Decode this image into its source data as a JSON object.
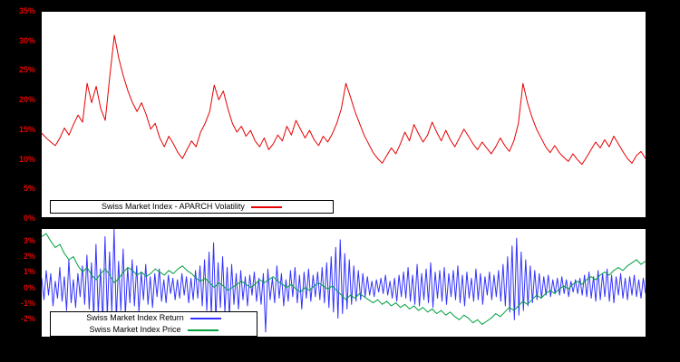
{
  "colors": {
    "page_bg": "#000000",
    "plot_bg": "#ffffff",
    "frame": "#000000",
    "volatility_line": "#e60000",
    "return_line": "#3333ff",
    "price_line": "#00a040",
    "tick_label": "#e60000"
  },
  "chart_data": [
    {
      "type": "line",
      "title": "Swiss Market Index - APARCH Volatility",
      "xlabel": "",
      "ylabel": "",
      "ylim": [
        0,
        35
      ],
      "yticks": [
        0,
        5,
        10,
        15,
        20,
        25,
        30,
        35
      ],
      "ytick_suffix": "%",
      "tick_color": "#e60000",
      "grid": false,
      "legend_position": "bottom-left-inside",
      "series": [
        {
          "name": "Swiss Market Index - APARCH Volatility",
          "color": "#e60000",
          "values": [
            14.3,
            13.5,
            12.8,
            12.2,
            13.5,
            15.2,
            14.0,
            15.8,
            17.4,
            16.2,
            22.8,
            19.5,
            22.3,
            18.5,
            16.5,
            24.0,
            31.0,
            27.0,
            24.0,
            21.5,
            19.5,
            18.0,
            19.5,
            17.5,
            15.0,
            16.0,
            13.5,
            12.0,
            13.8,
            12.5,
            11.0,
            10.0,
            11.5,
            13.0,
            12.0,
            14.5,
            16.0,
            18.0,
            22.5,
            20.0,
            21.5,
            18.5,
            16.0,
            14.5,
            15.5,
            13.8,
            14.8,
            13.0,
            12.0,
            13.5,
            11.5,
            12.5,
            14.0,
            13.0,
            15.5,
            14.0,
            16.5,
            15.0,
            13.5,
            14.8,
            13.2,
            12.2,
            13.8,
            12.8,
            14.2,
            16.0,
            18.5,
            22.8,
            20.5,
            18.0,
            16.0,
            14.0,
            12.5,
            11.0,
            10.0,
            9.2,
            10.5,
            11.8,
            10.8,
            12.5,
            14.5,
            13.0,
            15.8,
            14.2,
            12.8,
            14.0,
            16.2,
            14.5,
            13.0,
            14.8,
            13.2,
            12.0,
            13.5,
            15.0,
            13.8,
            12.5,
            11.5,
            12.8,
            11.8,
            10.8,
            12.0,
            13.5,
            12.2,
            11.2,
            13.0,
            16.0,
            22.8,
            19.5,
            17.0,
            15.0,
            13.5,
            12.0,
            11.0,
            12.2,
            11.0,
            10.2,
            9.5,
            10.8,
            9.8,
            9.0,
            10.2,
            11.5,
            12.8,
            11.8,
            13.2,
            12.0,
            13.8,
            12.5,
            11.2,
            10.0,
            9.2,
            10.5,
            11.2,
            10.0
          ]
        }
      ]
    },
    {
      "type": "line",
      "title": "",
      "xlabel": "",
      "ylabel": "",
      "ylim": [
        -3.2,
        3.8
      ],
      "yticks": [
        -2,
        -1,
        0,
        1,
        2,
        3
      ],
      "ytick_suffix": "%",
      "tick_color": "#e60000",
      "grid": false,
      "legend_position": "bottom-left-inside",
      "series": [
        {
          "name": "Swiss Market Index Return",
          "color": "#3333ff",
          "values": [
            0.6,
            -0.8,
            1.1,
            -0.5,
            0.9,
            -1.2,
            0.4,
            -0.7,
            1.3,
            -0.9,
            0.7,
            -1.5,
            1.8,
            -1.0,
            0.5,
            -1.3,
            0.9,
            -0.6,
            1.4,
            -1.1,
            2.1,
            -1.4,
            1.6,
            -2.0,
            2.8,
            -1.7,
            1.2,
            -2.2,
            3.3,
            -1.9,
            2.3,
            -1.6,
            3.8,
            -2.1,
            1.7,
            -1.5,
            2.5,
            -1.8,
            1.3,
            -1.0,
            1.8,
            -1.2,
            1.4,
            -1.6,
            1.0,
            -0.8,
            1.5,
            -1.1,
            0.7,
            -1.3,
            0.9,
            -0.6,
            1.2,
            -0.9,
            0.5,
            -1.0,
            0.8,
            -0.4,
            0.6,
            -0.8,
            0.5,
            -0.7,
            0.9,
            -0.5,
            0.7,
            -1.0,
            0.6,
            -0.8,
            1.1,
            -0.7,
            1.4,
            -1.2,
            1.8,
            -1.5,
            2.3,
            -1.8,
            2.9,
            -2.1,
            1.6,
            -1.3,
            2.0,
            -1.6,
            1.3,
            -1.9,
            1.5,
            -1.1,
            0.9,
            -1.4,
            1.1,
            -0.8,
            0.7,
            -1.2,
            0.8,
            -0.5,
            1.0,
            -0.9,
            0.6,
            -1.1,
            0.9,
            -2.9,
            1.2,
            -0.8,
            0.6,
            -1.0,
            1.4,
            -0.7,
            0.9,
            -1.2,
            0.5,
            -0.9,
            1.1,
            -0.6,
            1.3,
            -1.0,
            0.8,
            -1.4,
            1.0,
            -0.7,
            1.2,
            -0.9,
            0.8,
            -0.6,
            1.0,
            -0.8,
            1.3,
            -1.0,
            1.6,
            -1.3,
            2.0,
            -1.6,
            2.6,
            -2.0,
            3.1,
            -1.7,
            2.2,
            -1.4,
            1.8,
            -1.1,
            1.4,
            -0.9,
            1.1,
            -0.8,
            0.9,
            -0.6,
            0.7,
            -0.5,
            0.4,
            -0.6,
            0.5,
            -0.3,
            0.6,
            -0.4,
            0.8,
            -0.5,
            0.4,
            -0.7,
            0.6,
            -0.9,
            0.8,
            -0.6,
            1.0,
            -0.7,
            1.3,
            -0.9,
            0.8,
            -1.1,
            1.5,
            -1.2,
            0.9,
            -0.8,
            1.2,
            -1.0,
            1.6,
            -1.3,
            1.0,
            -0.7,
            1.1,
            -0.9,
            1.3,
            -1.1,
            0.9,
            -0.6,
            1.1,
            -0.8,
            1.4,
            -1.0,
            0.8,
            -1.2,
            1.0,
            -0.7,
            0.6,
            -0.9,
            1.2,
            -0.8,
            0.9,
            -1.1,
            0.7,
            -0.5,
            1.0,
            -0.8,
            0.8,
            -0.6,
            1.1,
            -0.9,
            1.5,
            -1.2,
            2.0,
            -1.6,
            2.7,
            -2.1,
            3.2,
            -1.8,
            2.3,
            -1.5,
            1.8,
            -1.2,
            1.4,
            -1.0,
            1.1,
            -0.8,
            0.9,
            -0.7,
            0.7,
            -0.5,
            0.8,
            -0.6,
            0.5,
            -0.4,
            0.6,
            -0.5,
            0.7,
            -0.4,
            0.5,
            -0.6,
            0.4,
            -0.3,
            0.5,
            -0.4,
            0.6,
            -0.5,
            0.8,
            -0.6,
            1.0,
            -0.7,
            0.7,
            -0.9,
            1.1,
            -0.8,
            0.9,
            -0.6,
            1.2,
            -0.9,
            0.8,
            -1.0,
            0.7,
            -0.5,
            0.9,
            -0.7,
            0.6,
            -0.8,
            0.7,
            -0.5,
            0.8,
            -0.6,
            0.5,
            -0.7,
            0.6,
            -0.4
          ]
        },
        {
          "name": "Swiss Market Index Price",
          "color": "#00a040",
          "values": [
            3.3,
            3.5,
            3.0,
            2.6,
            2.8,
            2.2,
            1.8,
            2.0,
            1.4,
            1.0,
            1.3,
            0.8,
            0.5,
            0.9,
            1.2,
            0.8,
            0.3,
            0.6,
            1.0,
            1.3,
            1.1,
            0.8,
            1.0,
            0.7,
            0.9,
            1.2,
            1.0,
            0.8,
            1.1,
            0.9,
            1.2,
            1.4,
            1.1,
            0.9,
            0.6,
            0.4,
            0.6,
            0.3,
            0.0,
            0.3,
            0.1,
            -0.2,
            0.0,
            0.2,
            0.4,
            0.2,
            0.0,
            0.2,
            0.5,
            0.3,
            0.5,
            0.7,
            0.4,
            0.2,
            0.0,
            0.2,
            -0.1,
            -0.3,
            0.0,
            -0.2,
            0.1,
            0.3,
            0.1,
            -0.1,
            0.1,
            -0.2,
            -0.5,
            -0.8,
            -0.5,
            -0.7,
            -0.4,
            -0.6,
            -0.8,
            -1.0,
            -0.8,
            -1.1,
            -0.9,
            -1.2,
            -1.0,
            -1.3,
            -1.1,
            -1.4,
            -1.2,
            -1.5,
            -1.3,
            -1.6,
            -1.4,
            -1.7,
            -1.5,
            -1.8,
            -1.6,
            -1.9,
            -2.1,
            -1.8,
            -2.0,
            -2.3,
            -2.1,
            -2.4,
            -2.2,
            -2.0,
            -1.7,
            -1.9,
            -1.6,
            -1.3,
            -1.5,
            -1.2,
            -0.9,
            -1.1,
            -0.8,
            -0.5,
            -0.7,
            -0.4,
            -0.2,
            -0.4,
            -0.1,
            0.1,
            -0.1,
            0.2,
            0.4,
            0.2,
            0.5,
            0.7,
            0.5,
            0.8,
            1.0,
            0.8,
            1.1,
            1.3,
            1.1,
            1.4,
            1.6,
            1.8,
            1.5,
            1.7
          ]
        }
      ]
    }
  ]
}
